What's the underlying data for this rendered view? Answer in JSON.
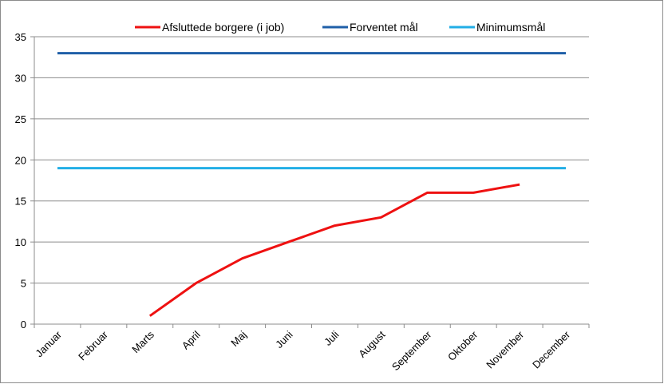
{
  "chart_data": {
    "type": "line",
    "title": "",
    "xlabel": "",
    "ylabel": "",
    "categories": [
      "Januar",
      "Februar",
      "Marts",
      "April",
      "Maj",
      "Juni",
      "Juli",
      "August",
      "September",
      "Oktober",
      "November",
      "December"
    ],
    "ylim": [
      0,
      35
    ],
    "yticks": [
      "0",
      "5",
      "10",
      "15",
      "20",
      "25",
      "30",
      "35"
    ],
    "grid": true,
    "legend_position": "top",
    "series": [
      {
        "name": "Afsluttede borgere (i job)",
        "color": "#ee1111",
        "values": [
          null,
          null,
          1,
          5,
          8,
          10,
          12,
          13,
          16,
          16,
          17,
          null
        ]
      },
      {
        "name": "Forventet mål",
        "color": "#1f5fa8",
        "values": [
          33,
          33,
          33,
          33,
          33,
          33,
          33,
          33,
          33,
          33,
          33,
          33
        ]
      },
      {
        "name": "Minimumsmål",
        "color": "#22aee6",
        "values": [
          19,
          19,
          19,
          19,
          19,
          19,
          19,
          19,
          19,
          19,
          19,
          19
        ]
      }
    ]
  }
}
